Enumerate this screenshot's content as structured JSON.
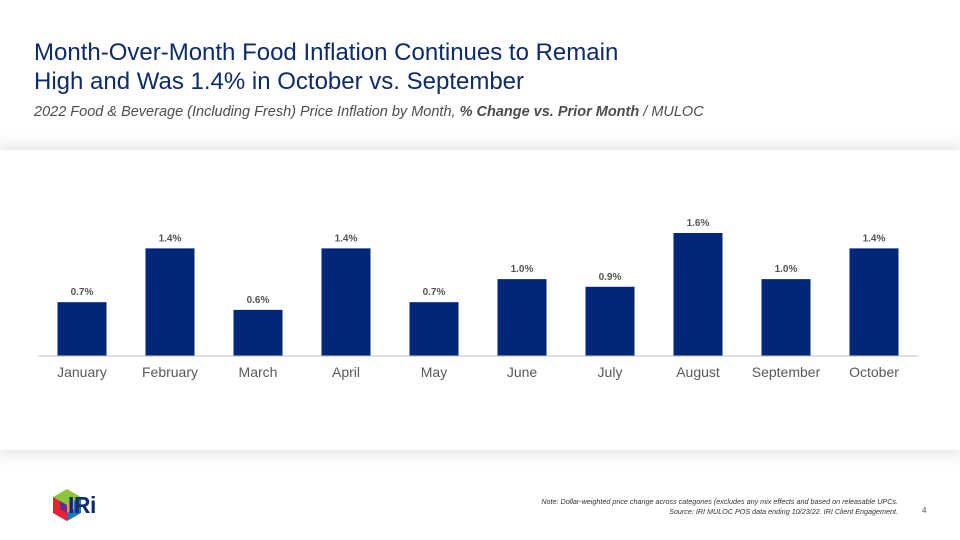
{
  "slide": {
    "title_line1": "Month-Over-Month Food Inflation Continues to Remain",
    "title_line2": "High and Was 1.4% in October vs. September",
    "subtitle_prefix": "2022 Food & Beverage (Including Fresh) Price Inflation by Month, ",
    "subtitle_bold": "% Change vs. Prior Month",
    "subtitle_suffix": " / MULOC",
    "note_line1": "Note: Dollar-weighted price change across categories (excludes any mix effects and based on releasable UPCs.",
    "note_line2": "Source: IRI MULOC POS data ending 10/23/22. IRI Client Engagement.",
    "page_number": "4",
    "logo_text": "IRi"
  },
  "colors": {
    "bar": "#002776",
    "title": "#0c2a6e",
    "axis": "#bfbfbf"
  },
  "chart_data": {
    "type": "bar",
    "categories": [
      "January",
      "February",
      "March",
      "April",
      "May",
      "June",
      "July",
      "August",
      "September",
      "October"
    ],
    "values": [
      0.7,
      1.4,
      0.6,
      1.4,
      0.7,
      1.0,
      0.9,
      1.6,
      1.0,
      1.4
    ],
    "data_labels": [
      "0.7%",
      "1.4%",
      "0.6%",
      "1.4%",
      "0.7%",
      "1.0%",
      "0.9%",
      "1.6%",
      "1.0%",
      "1.4%"
    ],
    "ylim": [
      0,
      1.6
    ],
    "grid": false,
    "legend": "none"
  }
}
